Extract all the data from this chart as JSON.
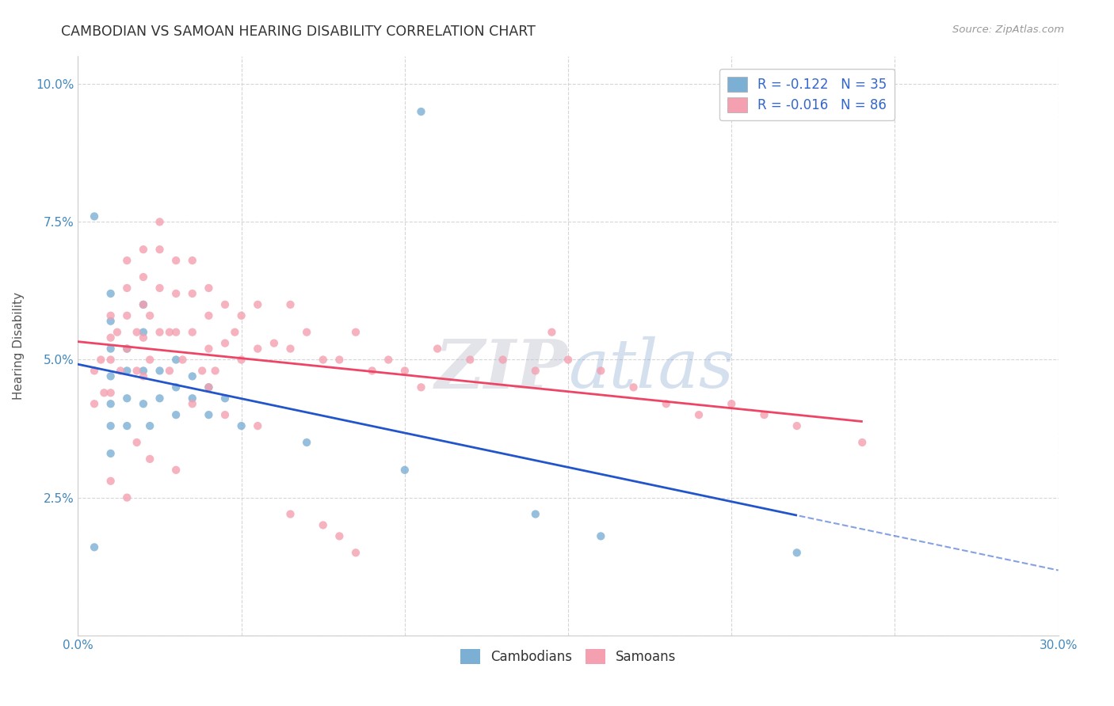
{
  "title": "CAMBODIAN VS SAMOAN HEARING DISABILITY CORRELATION CHART",
  "source": "Source: ZipAtlas.com",
  "ylabel": "Hearing Disability",
  "xlim": [
    0.0,
    0.3
  ],
  "ylim": [
    0.0,
    0.105
  ],
  "xtick_vals": [
    0.0,
    0.05,
    0.1,
    0.15,
    0.2,
    0.25,
    0.3
  ],
  "xtick_labels": [
    "0.0%",
    "",
    "",
    "",
    "",
    "",
    "30.0%"
  ],
  "ytick_vals": [
    0.0,
    0.025,
    0.05,
    0.075,
    0.1
  ],
  "ytick_labels": [
    "",
    "2.5%",
    "5.0%",
    "7.5%",
    "10.0%"
  ],
  "legend_r_cambodian": "-0.122",
  "legend_n_cambodian": "35",
  "legend_r_samoan": "-0.016",
  "legend_n_samoan": "86",
  "cambodian_color": "#7BAFD4",
  "samoan_color": "#F4A0B0",
  "trend_cambodian_color": "#2255CC",
  "trend_samoan_color": "#EE4466",
  "watermark_text": "ZIPatlas",
  "background_color": "#ffffff",
  "grid_color": "#cccccc",
  "cambodian_x": [
    0.005,
    0.01,
    0.01,
    0.01,
    0.01,
    0.01,
    0.01,
    0.01,
    0.015,
    0.015,
    0.015,
    0.015,
    0.02,
    0.02,
    0.02,
    0.02,
    0.022,
    0.025,
    0.025,
    0.03,
    0.03,
    0.03,
    0.035,
    0.035,
    0.04,
    0.04,
    0.045,
    0.05,
    0.07,
    0.1,
    0.105,
    0.14,
    0.16,
    0.22,
    0.005
  ],
  "cambodian_y": [
    0.076,
    0.062,
    0.057,
    0.052,
    0.047,
    0.042,
    0.038,
    0.033,
    0.052,
    0.048,
    0.043,
    0.038,
    0.06,
    0.055,
    0.048,
    0.042,
    0.038,
    0.048,
    0.043,
    0.05,
    0.045,
    0.04,
    0.047,
    0.043,
    0.045,
    0.04,
    0.043,
    0.038,
    0.035,
    0.03,
    0.095,
    0.022,
    0.018,
    0.015,
    0.016
  ],
  "samoan_x": [
    0.005,
    0.005,
    0.007,
    0.008,
    0.01,
    0.01,
    0.01,
    0.01,
    0.012,
    0.013,
    0.015,
    0.015,
    0.015,
    0.015,
    0.018,
    0.018,
    0.02,
    0.02,
    0.02,
    0.02,
    0.02,
    0.022,
    0.022,
    0.025,
    0.025,
    0.025,
    0.025,
    0.028,
    0.028,
    0.03,
    0.03,
    0.03,
    0.032,
    0.035,
    0.035,
    0.035,
    0.038,
    0.04,
    0.04,
    0.04,
    0.04,
    0.042,
    0.045,
    0.045,
    0.048,
    0.05,
    0.05,
    0.055,
    0.055,
    0.06,
    0.065,
    0.065,
    0.07,
    0.075,
    0.08,
    0.085,
    0.09,
    0.095,
    0.1,
    0.105,
    0.11,
    0.12,
    0.13,
    0.14,
    0.145,
    0.15,
    0.16,
    0.17,
    0.18,
    0.19,
    0.2,
    0.21,
    0.22,
    0.24,
    0.035,
    0.045,
    0.055,
    0.018,
    0.022,
    0.03,
    0.01,
    0.015,
    0.065,
    0.075,
    0.08,
    0.085
  ],
  "samoan_y": [
    0.048,
    0.042,
    0.05,
    0.044,
    0.058,
    0.054,
    0.05,
    0.044,
    0.055,
    0.048,
    0.068,
    0.063,
    0.058,
    0.052,
    0.055,
    0.048,
    0.07,
    0.065,
    0.06,
    0.054,
    0.047,
    0.058,
    0.05,
    0.075,
    0.07,
    0.063,
    0.055,
    0.055,
    0.048,
    0.068,
    0.062,
    0.055,
    0.05,
    0.068,
    0.062,
    0.055,
    0.048,
    0.063,
    0.058,
    0.052,
    0.045,
    0.048,
    0.06,
    0.053,
    0.055,
    0.058,
    0.05,
    0.06,
    0.052,
    0.053,
    0.06,
    0.052,
    0.055,
    0.05,
    0.05,
    0.055,
    0.048,
    0.05,
    0.048,
    0.045,
    0.052,
    0.05,
    0.05,
    0.048,
    0.055,
    0.05,
    0.048,
    0.045,
    0.042,
    0.04,
    0.042,
    0.04,
    0.038,
    0.035,
    0.042,
    0.04,
    0.038,
    0.035,
    0.032,
    0.03,
    0.028,
    0.025,
    0.022,
    0.02,
    0.018,
    0.015
  ]
}
